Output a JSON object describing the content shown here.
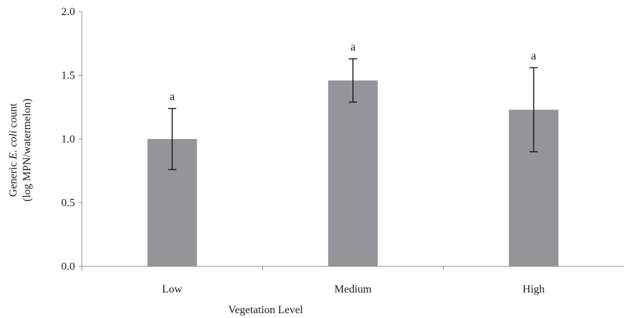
{
  "chart_data": {
    "type": "bar",
    "categories": [
      "Low",
      "Medium",
      "High"
    ],
    "values": [
      1.0,
      1.46,
      1.23
    ],
    "error_low": [
      0.76,
      1.29,
      0.9
    ],
    "error_high": [
      1.24,
      1.63,
      1.56
    ],
    "significance_labels": [
      "a",
      "a",
      "a"
    ],
    "title": "",
    "xlabel": "Vegetation Level",
    "ylabel_line1_prefix": "Generic ",
    "ylabel_line1_italic": "E. coli",
    "ylabel_line1_suffix": " count",
    "ylabel_line2": "(log MPN/watermelon)",
    "ylim": [
      0,
      2.0
    ],
    "yticks": [
      "0.0",
      "0.5",
      "1.0",
      "1.5",
      "2.0"
    ],
    "grid": false,
    "bar_color": "#939598",
    "axis_color": "#8c8c8c"
  }
}
